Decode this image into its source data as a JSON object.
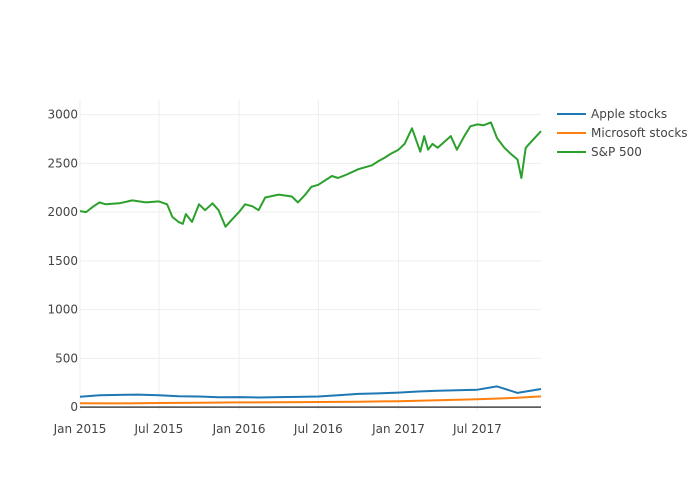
{
  "chart_data": {
    "type": "line",
    "title": "",
    "xlabel": "",
    "ylabel": "",
    "xlim": [
      "2015-01-01",
      "2017-11-24"
    ],
    "ylim": [
      -30,
      3150
    ],
    "grid": true,
    "legend_position": "top-right",
    "x_ticks": [
      "2015-01-01",
      "2015-07-01",
      "2016-01-01",
      "2016-07-01",
      "2017-01-01",
      "2017-07-01"
    ],
    "x_tick_labels": [
      "Jan 2015",
      "Jul 2015",
      "Jan 2016",
      "Jul 2016",
      "Jan 2017",
      "Jul 2017"
    ],
    "y_ticks": [
      0,
      500,
      1000,
      1500,
      2000,
      2500,
      3000
    ],
    "y_tick_labels": [
      "0",
      "500",
      "1000",
      "1500",
      "2000",
      "2500",
      "3000"
    ],
    "series": [
      {
        "name": "Apple stocks",
        "color": "#1f77b4",
        "x": [
          "2015-01-01",
          "2015-02-15",
          "2015-04-01",
          "2015-05-15",
          "2015-07-01",
          "2015-08-15",
          "2015-10-01",
          "2015-11-15",
          "2016-01-01",
          "2016-02-15",
          "2016-04-01",
          "2016-05-15",
          "2016-07-01",
          "2016-08-15",
          "2016-10-01",
          "2016-11-15",
          "2017-01-01",
          "2017-02-15",
          "2017-04-01",
          "2017-05-15",
          "2017-07-01",
          "2017-08-15",
          "2017-10-01",
          "2017-11-24"
        ],
        "y": [
          105,
          122,
          125,
          128,
          122,
          112,
          108,
          100,
          102,
          98,
          102,
          104,
          108,
          122,
          135,
          140,
          148,
          160,
          168,
          172,
          178,
          212,
          145,
          185
        ]
      },
      {
        "name": "Microsoft stocks",
        "color": "#ff7f0e",
        "x": [
          "2015-01-01",
          "2015-04-01",
          "2015-07-01",
          "2015-10-01",
          "2016-01-01",
          "2016-04-01",
          "2016-07-01",
          "2016-10-01",
          "2017-01-01",
          "2017-04-01",
          "2017-07-01",
          "2017-10-01",
          "2017-11-24"
        ],
        "y": [
          40,
          38,
          42,
          45,
          48,
          50,
          52,
          55,
          60,
          70,
          80,
          95,
          110
        ]
      },
      {
        "name": "S&P 500",
        "color": "#2ca02c",
        "x": [
          "2015-01-01",
          "2015-01-15",
          "2015-02-01",
          "2015-02-15",
          "2015-03-01",
          "2015-04-01",
          "2015-05-01",
          "2015-06-01",
          "2015-07-01",
          "2015-07-20",
          "2015-08-01",
          "2015-08-15",
          "2015-08-25",
          "2015-09-01",
          "2015-09-15",
          "2015-10-01",
          "2015-10-15",
          "2015-11-01",
          "2015-11-15",
          "2015-12-01",
          "2015-12-15",
          "2016-01-01",
          "2016-01-15",
          "2016-02-01",
          "2016-02-15",
          "2016-03-01",
          "2016-04-01",
          "2016-05-01",
          "2016-05-15",
          "2016-06-01",
          "2016-06-15",
          "2016-07-01",
          "2016-08-01",
          "2016-08-15",
          "2016-09-01",
          "2016-10-01",
          "2016-11-01",
          "2016-11-15",
          "2016-12-01",
          "2016-12-15",
          "2017-01-01",
          "2017-01-15",
          "2017-02-01",
          "2017-02-12",
          "2017-02-20",
          "2017-03-01",
          "2017-03-10",
          "2017-03-20",
          "2017-04-01",
          "2017-05-01",
          "2017-05-15",
          "2017-06-01",
          "2017-06-15",
          "2017-07-01",
          "2017-07-15",
          "2017-08-01",
          "2017-08-15",
          "2017-09-01",
          "2017-09-15",
          "2017-10-01",
          "2017-10-10",
          "2017-10-20",
          "2017-11-01",
          "2017-11-24"
        ],
        "y": [
          2010,
          2000,
          2060,
          2100,
          2080,
          2090,
          2120,
          2100,
          2110,
          2080,
          1950,
          1900,
          1880,
          1980,
          1900,
          2080,
          2020,
          2090,
          2020,
          1850,
          1920,
          2000,
          2080,
          2060,
          2020,
          2150,
          2180,
          2160,
          2100,
          2180,
          2260,
          2280,
          2370,
          2350,
          2380,
          2440,
          2480,
          2520,
          2560,
          2600,
          2640,
          2700,
          2860,
          2720,
          2620,
          2780,
          2640,
          2700,
          2660,
          2780,
          2640,
          2780,
          2880,
          2900,
          2890,
          2920,
          2760,
          2660,
          2600,
          2540,
          2350,
          2660,
          2720,
          2830
        ]
      }
    ]
  }
}
